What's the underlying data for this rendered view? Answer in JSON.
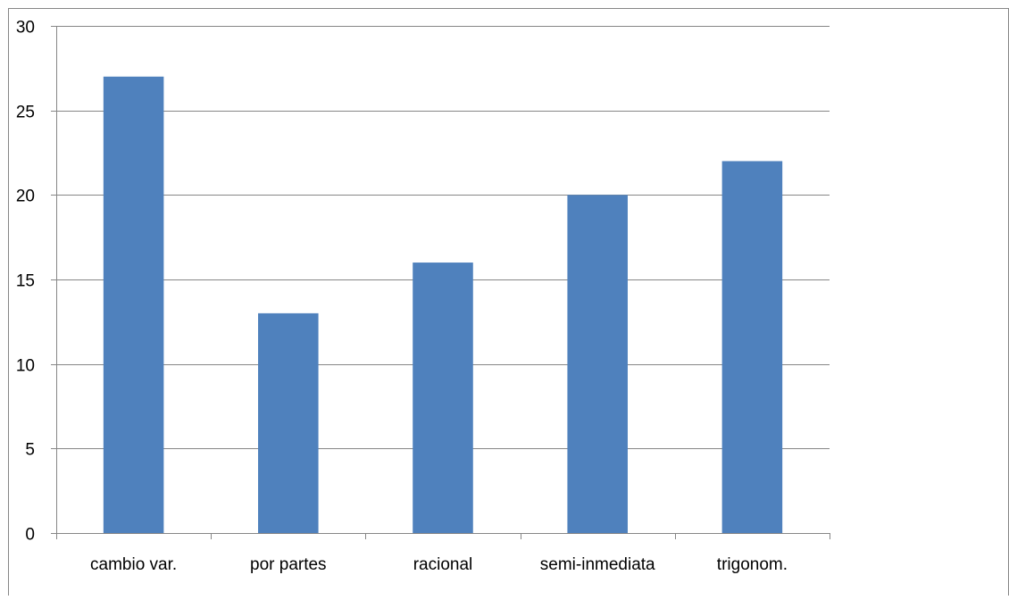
{
  "chart_data": {
    "type": "bar",
    "categories": [
      "cambio var.",
      "por partes",
      "racional",
      "semi-inmediata",
      "trigonom."
    ],
    "values": [
      27,
      13,
      16,
      20,
      22
    ],
    "title": "",
    "xlabel": "",
    "ylabel": "",
    "ylim": [
      0,
      30
    ],
    "yticks": [
      "0",
      "5",
      "10",
      "15",
      "20",
      "25",
      "30"
    ],
    "grid": true,
    "legend": "none",
    "colors": {
      "bar": "#4f81bd",
      "gridline": "#868686",
      "axis": "#868686",
      "border": "#868686",
      "text": "#000000"
    }
  }
}
